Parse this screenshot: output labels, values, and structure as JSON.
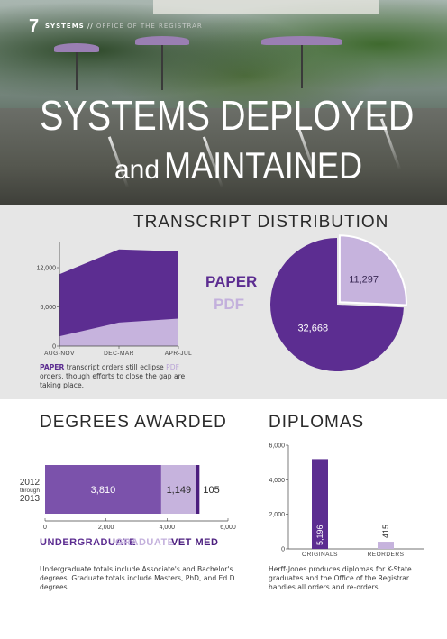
{
  "header": {
    "page_number": "7",
    "section": "SYSTEMS",
    "separator": "//",
    "subtitle": "OFFICE OF THE REGISTRAR",
    "hero_title_line1": "SYSTEMS DEPLOYED",
    "hero_title_and": "and",
    "hero_title_line2": "MAINTAINED"
  },
  "colors": {
    "dark_purple": "#5c2d91",
    "mid_purple": "#7b52ab",
    "light_purple": "#c6b3dd",
    "vet_med": "#4b1e7e"
  },
  "transcript": {
    "title": "TRANSCRIPT DISTRIBUTION",
    "caption_paper": "PAPER",
    "caption_text1": " transcript orders still eclipse ",
    "caption_pdf": "PDF",
    "caption_text2": " orders, though efforts to close the gap are taking place.",
    "legend_paper": "PAPER",
    "legend_pdf": "PDF"
  },
  "degrees": {
    "title": "DEGREES AWARDED",
    "year_top": "2012",
    "year_mid": "through",
    "year_bottom": "2013",
    "legend_undergrad": "UNDERGRADUATE",
    "legend_grad": "GRADUATE",
    "legend_vet": "VET MED",
    "caption": "Undergraduate totals include Associate's and Bachelor's degrees. Graduate totals include Masters, PhD, and Ed.D degrees."
  },
  "diplomas": {
    "title": "DIPLOMAS",
    "caption": "Herff-Jones produces diplomas for K-State graduates and the Office of the Registrar handles all orders and re-orders."
  },
  "chart_data": [
    {
      "type": "area",
      "title": "TRANSCRIPT DISTRIBUTION",
      "categories": [
        "AUG-NOV",
        "DEC-MAR",
        "APR-JUL"
      ],
      "series": [
        {
          "name": "PAPER",
          "values": [
            11000,
            14800,
            14500
          ]
        },
        {
          "name": "PDF",
          "values": [
            1500,
            3600,
            4200
          ]
        }
      ],
      "yticks": [
        "0",
        "6,000",
        "12,000"
      ],
      "ylim": [
        0,
        16000
      ]
    },
    {
      "type": "pie",
      "title": "TRANSCRIPT DISTRIBUTION",
      "slices": [
        {
          "name": "PAPER",
          "value": 32668,
          "label": "32,668"
        },
        {
          "name": "PDF",
          "value": 11297,
          "label": "11,297"
        }
      ]
    },
    {
      "type": "bar",
      "orientation": "horizontal-stacked",
      "title": "DEGREES AWARDED",
      "categories": [
        "2012 through 2013"
      ],
      "series": [
        {
          "name": "UNDERGRADUATE",
          "values": [
            3810
          ],
          "label": "3,810"
        },
        {
          "name": "GRADUATE",
          "values": [
            1149
          ],
          "label": "1,149"
        },
        {
          "name": "VET MED",
          "values": [
            105
          ],
          "label": "105"
        }
      ],
      "xticks": [
        "0",
        "2,000",
        "4,000",
        "6,000"
      ],
      "xlim": [
        0,
        6000
      ]
    },
    {
      "type": "bar",
      "title": "DIPLOMAS",
      "categories": [
        "ORIGINALS",
        "REORDERS"
      ],
      "values": [
        5196,
        415
      ],
      "value_labels": [
        "5,196",
        "415"
      ],
      "yticks": [
        "0",
        "2,000",
        "4,000",
        "6,000"
      ],
      "ylim": [
        0,
        6000
      ]
    }
  ]
}
